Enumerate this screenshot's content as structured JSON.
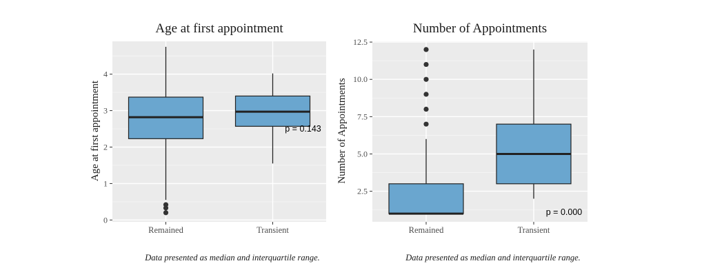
{
  "colors": {
    "panel": "#ebebeb",
    "grid_major": "#ffffff",
    "grid_minor": "#f5f5f5",
    "box_fill": "#6aa6cf",
    "box_stroke": "#222222",
    "outlier": "#333333"
  },
  "chart_data": [
    {
      "type": "boxplot",
      "title": "Age at first appointment",
      "xlabel": "",
      "ylabel": "Age at first appointment",
      "ylim": [
        -0.05,
        4.9
      ],
      "yticks": [
        0,
        1,
        2,
        3,
        4
      ],
      "ytick_labels": [
        "0",
        "1",
        "2",
        "3",
        "4"
      ],
      "grid": true,
      "categories": [
        "Remained",
        "Transient"
      ],
      "boxes": [
        {
          "category": "Remained",
          "whisker_low": 0.55,
          "q1": 2.23,
          "median": 2.82,
          "q3": 3.37,
          "whisker_high": 4.75,
          "outliers": [
            0.42,
            0.33,
            0.2
          ]
        },
        {
          "category": "Transient",
          "whisker_low": 1.55,
          "q1": 2.57,
          "median": 2.97,
          "q3": 3.4,
          "whisker_high": 4.02,
          "outliers": []
        }
      ],
      "annotation": {
        "text": "p = 0.143",
        "x_category": "Transient",
        "y": 2.5
      },
      "caption": "Data presented as median and interquartile range."
    },
    {
      "type": "boxplot",
      "title": "Number of Appointments",
      "xlabel": "",
      "ylabel": "Number of Appointments",
      "ylim": [
        0.45,
        12.55
      ],
      "yticks": [
        2.5,
        5.0,
        7.5,
        10.0,
        12.5
      ],
      "ytick_labels": [
        "2.5",
        "5.0",
        "7.5",
        "10.0",
        "12.5"
      ],
      "grid": true,
      "categories": [
        "Remained",
        "Transient"
      ],
      "boxes": [
        {
          "category": "Remained",
          "whisker_low": 1,
          "q1": 1,
          "median": 1,
          "q3": 3,
          "whisker_high": 6,
          "outliers": [
            7,
            8,
            9,
            10,
            11,
            12
          ]
        },
        {
          "category": "Transient",
          "whisker_low": 2,
          "q1": 3,
          "median": 5,
          "q3": 7,
          "whisker_high": 12,
          "outliers": []
        }
      ],
      "annotation": {
        "text": "p = 0.000",
        "x_category": "Transient",
        "y": 1.1
      },
      "caption": "Data presented as median and interquartile range."
    }
  ]
}
